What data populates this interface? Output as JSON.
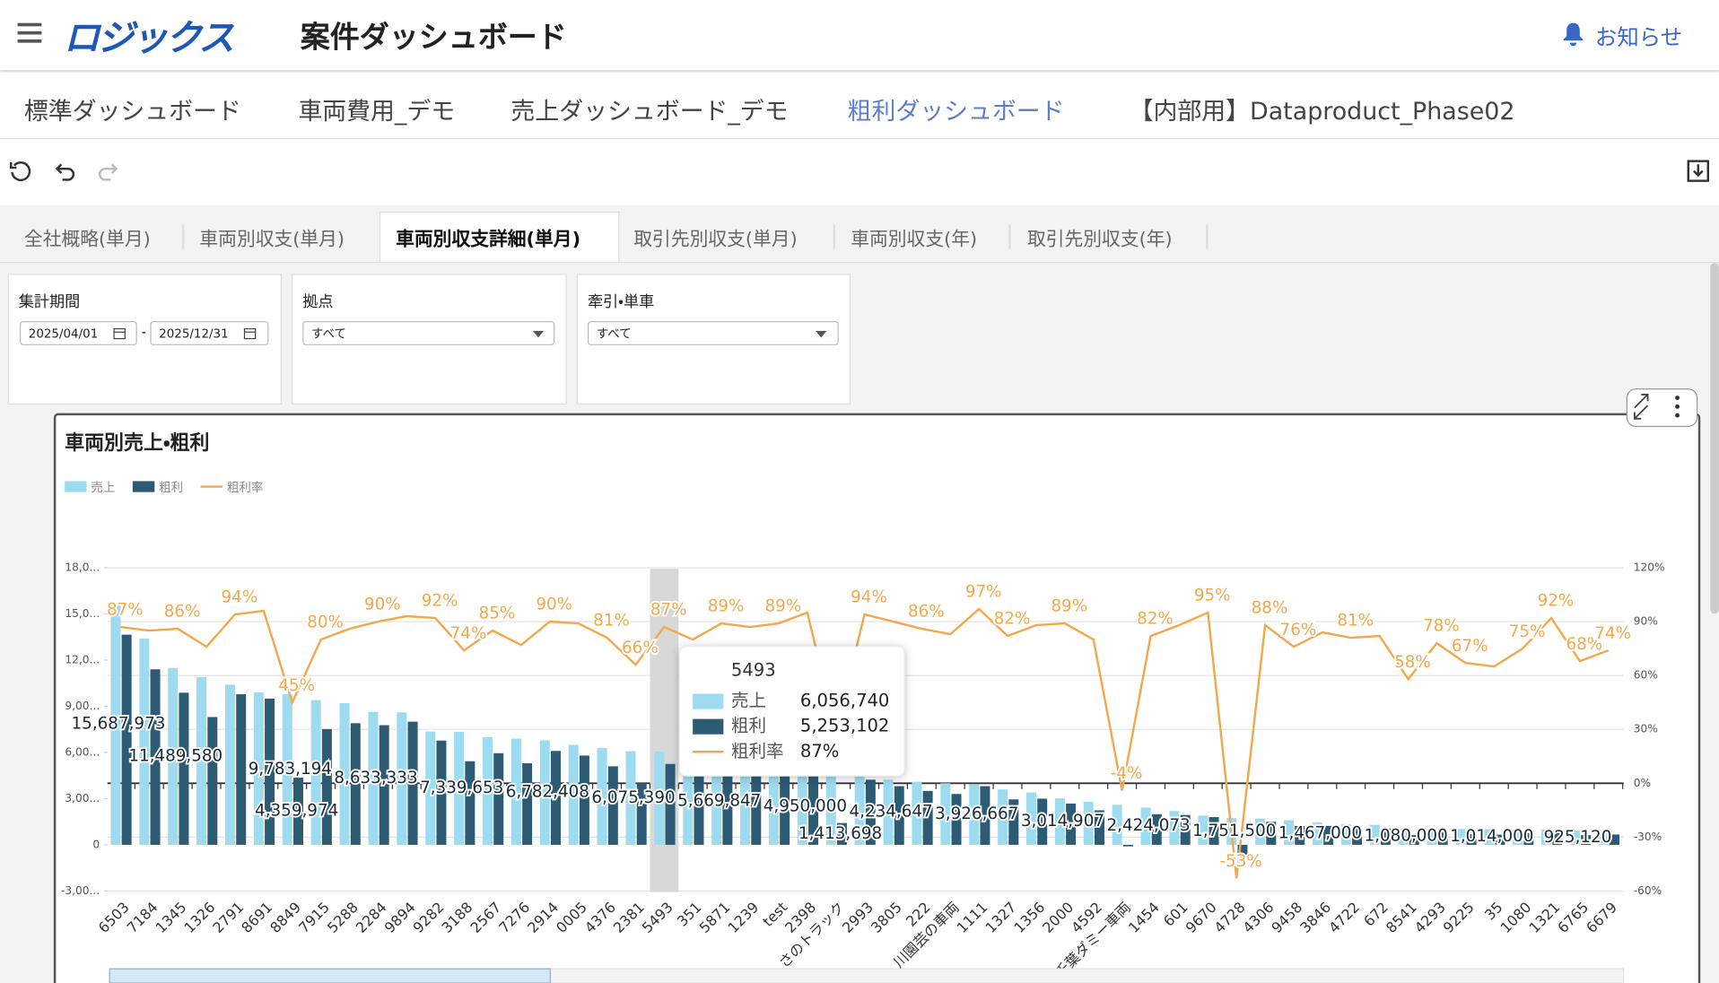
{
  "header": {
    "logo": "ロジックス",
    "title": "案件ダッシュボード",
    "notice": "お知らせ"
  },
  "nav": {
    "tabs": [
      "標準ダッシュボード",
      "車両費用_デモ",
      "売上ダッシュボード_デモ",
      "粗利ダッシュボード",
      "【内部用】Dataproduct_Phase02"
    ]
  },
  "subtabs": [
    "全社概略(単月)",
    "車両別収支(単月)",
    "車両別収支詳細(単月)",
    "取引先別収支(単月)",
    "車両別収支(年)",
    "取引先別収支(年)"
  ],
  "filters": [
    {
      "label": "集計期間",
      "from": "2025/04/01",
      "separator": "-",
      "to": "2025/12/31"
    },
    {
      "label": "拠点",
      "value": "すべて"
    },
    {
      "label": "牽引・単車",
      "value": "すべて"
    }
  ],
  "chart_data": {
    "type": "bar",
    "title": "車両別売上・粗利",
    "categories": [
      "6503",
      "7184",
      "1345",
      "1326",
      "2791",
      "8691",
      "8849",
      "7915",
      "5288",
      "2284",
      "9894",
      "9282",
      "3188",
      "2567",
      "7276",
      "2914",
      "0005",
      "4376",
      "2381",
      "5493",
      "351",
      "5871",
      "1239",
      "test",
      "2398",
      "さのトラック",
      "2993",
      "3805",
      "222",
      "川園芸の車両",
      "1111",
      "1327",
      "1356",
      "2000",
      "4592",
      "千葉ダミー車両",
      "1454",
      "601",
      "9670",
      "4728",
      "4306",
      "9458",
      "3846",
      "4722",
      "672",
      "8541",
      "4293",
      "9225",
      "35",
      "1080",
      "1321",
      "6765",
      "6679"
    ],
    "series": [
      {
        "name": "売上",
        "type": "bar",
        "color": "#9ddcf0",
        "values": [
          15687973,
          13400000,
          11489580,
          10900000,
          10400000,
          9900000,
          9783194,
          9400000,
          9200000,
          8633333,
          8600000,
          7360000,
          7339653,
          7000000,
          6900000,
          6782408,
          6500000,
          6300000,
          6075390,
          6056740,
          5900000,
          5669847,
          5500000,
          5300000,
          4950000,
          4880000,
          4500000,
          4234647,
          4100000,
          4000000,
          3926667,
          3600000,
          3400000,
          3014907,
          2800000,
          2600000,
          2424073,
          2200000,
          1900000,
          1751500,
          1700000,
          1600000,
          1467000,
          1350000,
          1300000,
          1080000,
          1050000,
          1030000,
          1014000,
          1000000,
          980000,
          925120,
          900000
        ],
        "value_labels": [
          "15,687,973",
          null,
          "11,489,580",
          null,
          null,
          null,
          "9,783,194",
          null,
          null,
          "8,633,333",
          null,
          null,
          "7,339,653",
          null,
          null,
          "6,782,408",
          null,
          null,
          "6,075,390",
          null,
          null,
          "5,669,847",
          null,
          null,
          "4,950,000",
          null,
          null,
          "4,234,647",
          null,
          null,
          "3,926,667",
          null,
          null,
          "3,014,907",
          null,
          null,
          "2,424,073",
          null,
          null,
          "1,751,500",
          null,
          null,
          "1,467,000",
          null,
          null,
          "1,080,000",
          null,
          null,
          "1,014,000",
          null,
          null,
          "925,120",
          null
        ]
      },
      {
        "name": "粗利",
        "type": "bar",
        "color": "#2d5b73",
        "values": [
          13650000,
          11400000,
          9880000,
          8300000,
          9780000,
          9500000,
          4359974,
          7520000,
          7900000,
          7770000,
          8000000,
          6770000,
          5430000,
          5950000,
          5300000,
          6100000,
          5800000,
          5100000,
          4000000,
          5253102,
          4720000,
          5050000,
          4800000,
          4700000,
          4700000,
          1413698,
          4230000,
          3810000,
          3500000,
          3300000,
          3810000,
          2950000,
          3000000,
          2680000,
          2240000,
          -100000,
          1990000,
          1940000,
          1800000,
          -930000,
          1500000,
          1220000,
          1230000,
          1090000,
          1070000,
          630000,
          820000,
          690000,
          660000,
          750000,
          900000,
          630000,
          670000
        ],
        "value_labels": [
          null,
          null,
          null,
          null,
          null,
          null,
          "4,359,974",
          null,
          null,
          null,
          null,
          null,
          null,
          null,
          null,
          null,
          null,
          null,
          null,
          null,
          null,
          null,
          null,
          null,
          null,
          "1,413,698",
          null,
          null,
          null,
          null,
          null,
          null,
          null,
          null,
          null,
          null,
          null,
          null,
          null,
          null,
          null,
          null,
          null,
          null,
          null,
          null,
          null,
          null,
          null,
          null,
          null,
          null,
          null
        ]
      },
      {
        "name": "粗利率",
        "type": "line",
        "axis": "y2",
        "color": "#f2a94e",
        "values": [
          87,
          85,
          86,
          76,
          94,
          96,
          45,
          80,
          86,
          90,
          93,
          92,
          74,
          85,
          77,
          90,
          89,
          81,
          66,
          87,
          80,
          89,
          87,
          89,
          95,
          29,
          94,
          90,
          86,
          83,
          97,
          82,
          88,
          89,
          80,
          -4,
          82,
          88,
          95,
          -53,
          88,
          76,
          84,
          81,
          82,
          58,
          78,
          67,
          65,
          75,
          92,
          68,
          74
        ],
        "value_labels": [
          "87%",
          null,
          "86%",
          null,
          "94%",
          null,
          "45%",
          "80%",
          null,
          "90%",
          null,
          "92%",
          "74%",
          "85%",
          null,
          "90%",
          null,
          "81%",
          "66%",
          "87%",
          null,
          "89%",
          null,
          "89%",
          null,
          null,
          "94%",
          null,
          "86%",
          null,
          "97%",
          "82%",
          null,
          "89%",
          null,
          "-4%",
          "82%",
          null,
          "95%",
          "-53%",
          "88%",
          "76%",
          null,
          "81%",
          null,
          "58%",
          "78%",
          "67%",
          null,
          "75%",
          "92%",
          "68%",
          "74%"
        ]
      }
    ],
    "ylim": [
      -3000000,
      18000000
    ],
    "yticks": [
      {
        "value": -3000000,
        "label": "-3,00..."
      },
      0,
      {
        "value": 3000000,
        "label": "3,00..."
      },
      {
        "value": 6000000,
        "label": "6,00..."
      },
      {
        "value": 9000000,
        "label": "9,00..."
      },
      {
        "value": 12000000,
        "label": "12,0..."
      },
      {
        "value": 15000000,
        "label": "15,0..."
      },
      {
        "value": 18000000,
        "label": "18,0..."
      }
    ],
    "y2lim": [
      -60,
      120
    ],
    "y2ticks": [
      {
        "value": -60,
        "label": "-60%"
      },
      {
        "value": -30,
        "label": "-30%"
      },
      {
        "value": 0,
        "label": "0%"
      },
      {
        "value": 30,
        "label": "30%"
      },
      {
        "value": 60,
        "label": "60%"
      },
      {
        "value": 90,
        "label": "90%"
      },
      {
        "value": 120,
        "label": "120%"
      }
    ],
    "grid": true,
    "legend": "top-left",
    "tooltip": {
      "title": "5493",
      "values": [
        "6,056,740",
        "5,253,102",
        "87%"
      ]
    }
  }
}
